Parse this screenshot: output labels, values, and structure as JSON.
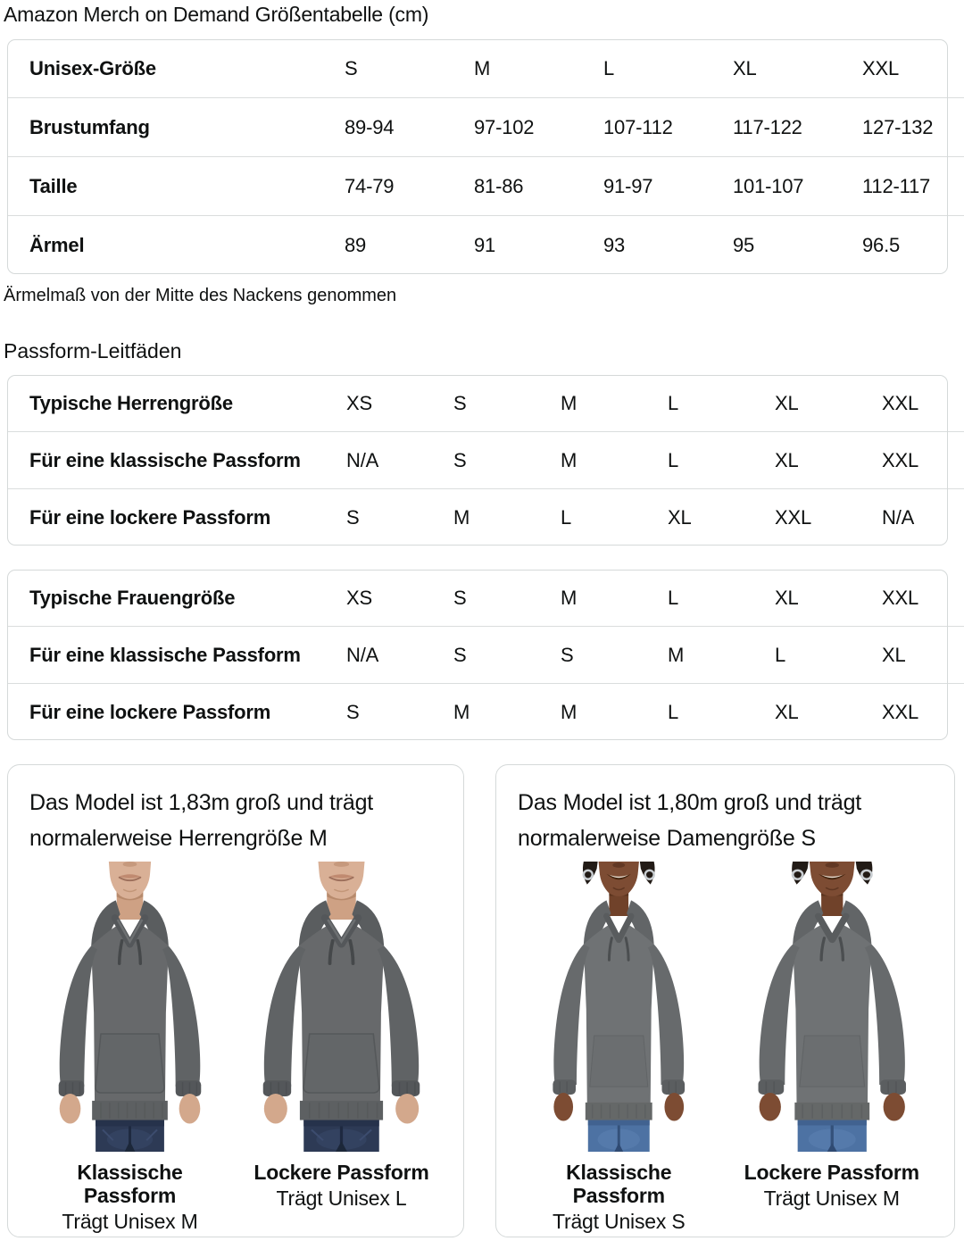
{
  "page": {
    "title": "Amazon Merch on Demand Größentabelle (cm)",
    "size_note": "Ärmelmaß von der Mitte des Nackens genommen",
    "fit_heading": "Passform-Leitfäden"
  },
  "size_table": {
    "rows": [
      {
        "label": "Unisex-Größe",
        "values": [
          "S",
          "M",
          "L",
          "XL",
          "XXL"
        ]
      },
      {
        "label": "Brustumfang",
        "values": [
          "89-94",
          "97-102",
          "107-112",
          "117-122",
          "127-132"
        ]
      },
      {
        "label": "Taille",
        "values": [
          "74-79",
          "81-86",
          "91-97",
          "101-107",
          "112-117"
        ]
      },
      {
        "label": "Ärmel",
        "values": [
          "89",
          "91",
          "93",
          "95",
          "96.5"
        ]
      }
    ]
  },
  "mens_fit_table": {
    "rows": [
      {
        "label": "Typische Herrengröße",
        "values": [
          "XS",
          "S",
          "M",
          "L",
          "XL",
          "XXL"
        ]
      },
      {
        "label": "Für eine klassische Passform",
        "values": [
          "N/A",
          "S",
          "M",
          "L",
          "XL",
          "XXL"
        ]
      },
      {
        "label": "Für eine lockere Passform",
        "values": [
          "S",
          "M",
          "L",
          "XL",
          "XXL",
          "N/A"
        ]
      }
    ]
  },
  "womens_fit_table": {
    "rows": [
      {
        "label": "Typische Frauengröße",
        "values": [
          "XS",
          "S",
          "M",
          "L",
          "XL",
          "XXL"
        ]
      },
      {
        "label": "Für eine klassische Passform",
        "values": [
          "N/A",
          "S",
          "S",
          "M",
          "L",
          "XL"
        ]
      },
      {
        "label": "Für eine lockere Passform",
        "values": [
          "S",
          "M",
          "M",
          "L",
          "XL",
          "XXL"
        ]
      }
    ]
  },
  "model_cards": [
    {
      "description": "Das Model ist 1,83m groß und trägt normalerweise Herrengröße M",
      "figures": [
        {
          "caption_title": "Klassische Passform",
          "caption_sub": "Trägt Unisex M"
        },
        {
          "caption_title": "Lockere Passform",
          "caption_sub": "Trägt Unisex L"
        }
      ]
    },
    {
      "description": "Das Model ist 1,80m groß und trägt normalerweise Damengröße S",
      "figures": [
        {
          "caption_title": "Klassische Passform",
          "caption_sub": "Trägt Unisex S"
        },
        {
          "caption_title": "Lockere Passform",
          "caption_sub": "Trägt Unisex M"
        }
      ]
    }
  ],
  "colors": {
    "text": "#0F1111",
    "table_border": "#D5D9D9",
    "row_divider": "#DADDDD",
    "hoodie_gray_men": "#67696B",
    "hoodie_gray_women": "#6F7274",
    "jeans_dark": "#2D3A55",
    "jeans_light": "#4D72A3"
  }
}
